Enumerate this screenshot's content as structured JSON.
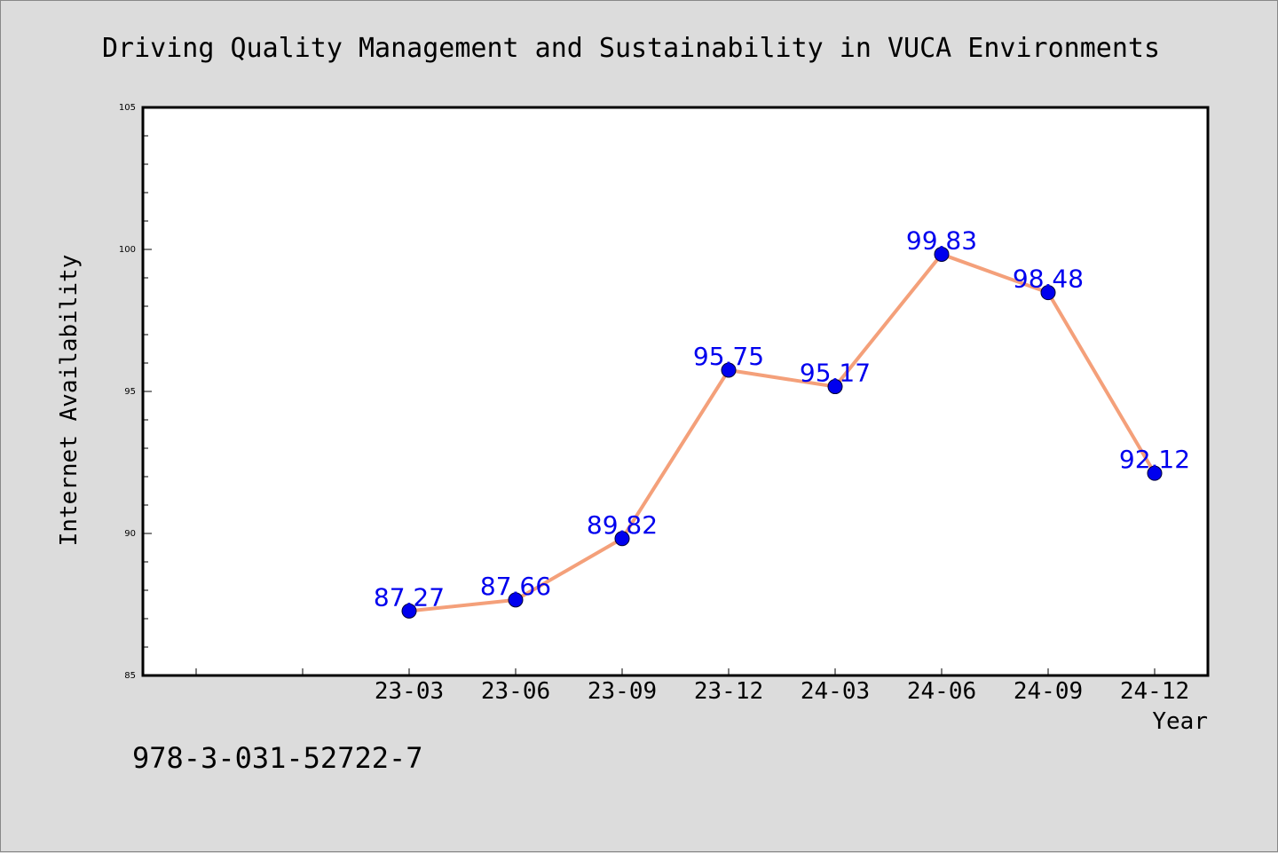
{
  "chart_data": {
    "type": "line",
    "title": "Driving Quality Management and Sustainability in VUCA Environments",
    "xlabel": "Year",
    "ylabel": "Internet Availability",
    "categories": [
      "23-03",
      "23-06",
      "23-09",
      "23-12",
      "24-03",
      "24-06",
      "24-09",
      "24-12"
    ],
    "series": [
      {
        "values": [
          87.27,
          87.66,
          89.82,
          95.75,
          95.17,
          99.83,
          98.48,
          92.12
        ]
      }
    ],
    "data_labels": [
      "87.27",
      "87.66",
      "89.82",
      "95.75",
      "95.17",
      "99.83",
      "98.48",
      "92.12"
    ],
    "ylim": [
      85,
      105
    ],
    "yticks": [
      85,
      90,
      95,
      100,
      105
    ],
    "grid": false,
    "colors": {
      "line": "#f4a07a",
      "marker": "#0000ee",
      "label": "#0000ee",
      "background": "#dcdcdc",
      "plot_background": "#ffffff"
    }
  },
  "footer_text": "978-3-031-52722-7"
}
